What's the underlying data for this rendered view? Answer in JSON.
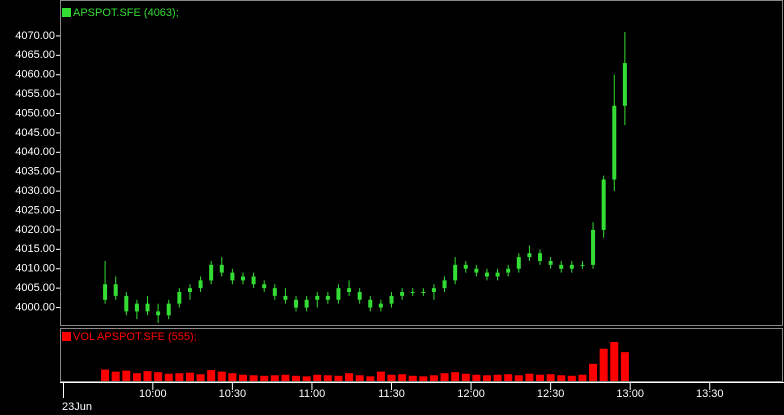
{
  "chart_data": [
    {
      "type": "candlestick",
      "title": "APSPOT.SFE (4063);",
      "color": "#33dd33",
      "date_label": "23Jun",
      "x": [
        "09:42",
        "09:46",
        "09:50",
        "09:54",
        "09:58",
        "10:02",
        "10:06",
        "10:10",
        "10:14",
        "10:18",
        "10:22",
        "10:26",
        "10:30",
        "10:34",
        "10:38",
        "10:42",
        "10:46",
        "10:50",
        "10:54",
        "10:58",
        "11:02",
        "11:06",
        "11:10",
        "11:14",
        "11:18",
        "11:22",
        "11:26",
        "11:30",
        "11:34",
        "11:38",
        "11:42",
        "11:46",
        "11:50",
        "11:54",
        "11:58",
        "12:02",
        "12:06",
        "12:10",
        "12:14",
        "12:18",
        "12:22",
        "12:26",
        "12:30",
        "12:34",
        "12:38",
        "12:42",
        "12:46",
        "12:50",
        "12:54",
        "12:58"
      ],
      "open": [
        4002,
        4006,
        4003,
        3999,
        4001,
        3999,
        3998,
        4001,
        4004,
        4005,
        4007,
        4011,
        4009,
        4007,
        4008,
        4006,
        4005,
        4003,
        4002,
        4000,
        4002,
        4003,
        4002,
        4005,
        4004,
        4002,
        4000,
        4001,
        4003,
        4004,
        4004,
        4004,
        4005,
        4007,
        4011,
        4010,
        4009,
        4008,
        4009,
        4010,
        4013,
        4014,
        4012,
        4011,
        4010,
        4011,
        4011,
        4020,
        4033,
        4052
      ],
      "high": [
        4012,
        4008,
        4004,
        4002,
        4003,
        4001,
        4002,
        4005,
        4006,
        4008,
        4012,
        4013,
        4010,
        4009,
        4009,
        4007,
        4006,
        4005,
        4003,
        4003,
        4004,
        4004,
        4006,
        4007,
        4005,
        4003,
        4002,
        4004,
        4005,
        4005,
        4005,
        4006,
        4008,
        4013,
        4012,
        4011,
        4010,
        4010,
        4011,
        4014,
        4016,
        4015,
        4013,
        4012,
        4012,
        4012,
        4022,
        4034,
        4060,
        4071
      ],
      "low": [
        4001,
        4002,
        3998,
        3997,
        3998,
        3996,
        3997,
        4000,
        4002,
        4004,
        4006,
        4008,
        4006,
        4006,
        4005,
        4004,
        4002,
        4001,
        3999,
        3999,
        4000,
        4001,
        4001,
        4003,
        4001,
        3999,
        3999,
        4000,
        4002,
        4003,
        4003,
        4002,
        4004,
        4006,
        4009,
        4008,
        4007,
        4007,
        4008,
        4009,
        4012,
        4011,
        4010,
        4009,
        4009,
        4010,
        4010,
        4018,
        4030,
        4047
      ],
      "close": [
        4006,
        4003,
        3999,
        4001,
        3999,
        3998,
        4001,
        4004,
        4005,
        4007,
        4011,
        4009,
        4007,
        4008,
        4006,
        4005,
        4003,
        4002,
        4000,
        4002,
        4003,
        4002,
        4005,
        4004,
        4002,
        4000,
        4001,
        4003,
        4004,
        4004,
        4004,
        4005,
        4007,
        4011,
        4010,
        4009,
        4008,
        4009,
        4010,
        4013,
        4014,
        4012,
        4011,
        4010,
        4011,
        4011,
        4020,
        4033,
        4052,
        4063
      ],
      "ylim": [
        3995.5,
        4079
      ],
      "yticks": [
        {
          "value": 4000,
          "label": "4000.00"
        },
        {
          "value": 4005,
          "label": "4005.00"
        },
        {
          "value": 4010,
          "label": "4010.00"
        },
        {
          "value": 4015,
          "label": "4015.00"
        },
        {
          "value": 4020,
          "label": "4020.00"
        },
        {
          "value": 4025,
          "label": "4025.00"
        },
        {
          "value": 4030,
          "label": "4030.00"
        },
        {
          "value": 4035,
          "label": "4035.00"
        },
        {
          "value": 4040,
          "label": "4040.00"
        },
        {
          "value": 4045,
          "label": "4045.00"
        },
        {
          "value": 4050,
          "label": "4050.00"
        },
        {
          "value": 4055,
          "label": "4055.00"
        },
        {
          "value": 4060,
          "label": "4060.00"
        },
        {
          "value": 4065,
          "label": "4065.00"
        },
        {
          "value": 4070,
          "label": "4070.00"
        }
      ],
      "xlim": [
        "09:25",
        "13:58"
      ],
      "xticks": [
        "10:00",
        "10:30",
        "11:00",
        "11:30",
        "12:00",
        "12:30",
        "13:00",
        "13:30"
      ]
    },
    {
      "type": "bar",
      "title": "VOL APSPOT.SFE (555);",
      "color": "#ff0000",
      "x": [
        "09:42",
        "09:46",
        "09:50",
        "09:54",
        "09:58",
        "10:02",
        "10:06",
        "10:10",
        "10:14",
        "10:18",
        "10:22",
        "10:26",
        "10:30",
        "10:34",
        "10:38",
        "10:42",
        "10:46",
        "10:50",
        "10:54",
        "10:58",
        "11:02",
        "11:06",
        "11:10",
        "11:14",
        "11:18",
        "11:22",
        "11:26",
        "11:30",
        "11:34",
        "11:38",
        "11:42",
        "11:46",
        "11:50",
        "11:54",
        "11:58",
        "12:02",
        "12:06",
        "12:10",
        "12:14",
        "12:18",
        "12:22",
        "12:26",
        "12:30",
        "12:34",
        "12:38",
        "12:42",
        "12:46",
        "12:50",
        "12:54",
        "12:58"
      ],
      "values": [
        220,
        180,
        200,
        150,
        190,
        170,
        140,
        150,
        160,
        130,
        210,
        180,
        150,
        120,
        110,
        100,
        110,
        120,
        100,
        90,
        120,
        110,
        100,
        150,
        110,
        90,
        180,
        120,
        130,
        100,
        90,
        110,
        150,
        170,
        140,
        120,
        110,
        120,
        130,
        110,
        140,
        120,
        130,
        110,
        100,
        120,
        330,
        620,
        750,
        555
      ],
      "ylim": [
        0,
        1000
      ]
    }
  ]
}
